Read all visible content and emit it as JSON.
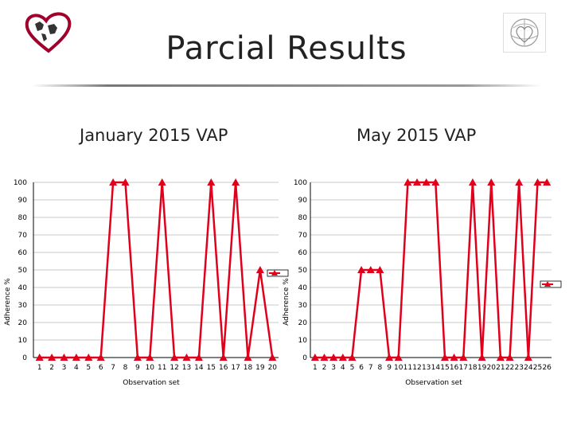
{
  "slide": {
    "title": "Parcial Results",
    "subtitle_left": "January 2015 VAP",
    "subtitle_right": "May 2015 VAP",
    "logo_left_icon": "heart-map-logo-icon",
    "logo_right_icon": "globe-heart-logo-icon",
    "accent_color": "#e0001b"
  },
  "chart_data": [
    {
      "type": "line",
      "x": [
        1,
        2,
        3,
        4,
        5,
        6,
        7,
        8,
        9,
        10,
        11,
        12,
        13,
        14,
        15,
        16,
        17,
        18,
        19,
        20
      ],
      "series": [
        {
          "values": [
            0,
            0,
            0,
            0,
            0,
            0,
            100,
            100,
            0,
            0,
            100,
            0,
            0,
            0,
            100,
            0,
            100,
            0,
            50,
            0
          ],
          "color": "#e0001b",
          "marker": "triangle"
        }
      ],
      "xlabel": "Observation set",
      "ylabel": "Adherence %",
      "ylim": [
        0,
        100
      ],
      "yticks": [
        0,
        10,
        20,
        30,
        40,
        50,
        60,
        70,
        80,
        90,
        100
      ],
      "grid": "horizontal",
      "legend": "right"
    },
    {
      "type": "line",
      "x": [
        1,
        2,
        3,
        4,
        5,
        6,
        7,
        8,
        9,
        10,
        11,
        12,
        13,
        14,
        15,
        16,
        17,
        18,
        19,
        20,
        21,
        22,
        23,
        24,
        25,
        26
      ],
      "series": [
        {
          "values": [
            0,
            0,
            0,
            0,
            0,
            50,
            50,
            50,
            0,
            0,
            100,
            100,
            100,
            100,
            0,
            0,
            0,
            100,
            0,
            100,
            0,
            0,
            100,
            0,
            100,
            100
          ],
          "color": "#e0001b",
          "marker": "triangle"
        }
      ],
      "xlabel": "Observation set",
      "ylabel": "Adherence %",
      "ylim": [
        0,
        100
      ],
      "yticks": [
        0,
        10,
        20,
        30,
        40,
        50,
        60,
        70,
        80,
        90,
        100
      ],
      "grid": "horizontal",
      "legend": "right"
    }
  ]
}
